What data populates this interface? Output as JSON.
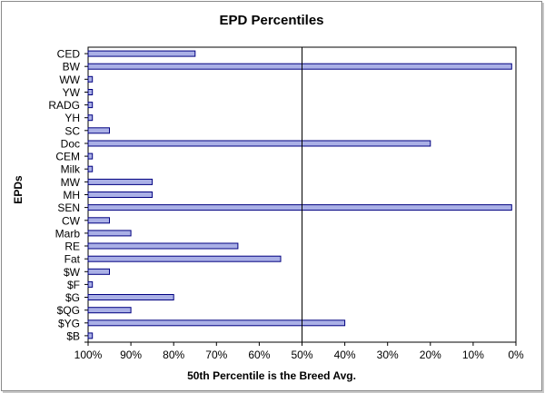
{
  "chart_data": {
    "type": "bar",
    "orientation": "horizontal",
    "title": "EPD Percentiles",
    "xlabel": "50th Percentile is the Breed Avg.",
    "ylabel": "EPDs",
    "xlim": [
      100,
      0
    ],
    "x_reversed": true,
    "x_ticks": [
      "100%",
      "90%",
      "80%",
      "70%",
      "60%",
      "50%",
      "40%",
      "30%",
      "20%",
      "10%",
      "0%"
    ],
    "x_tick_values": [
      100,
      90,
      80,
      70,
      60,
      50,
      40,
      30,
      20,
      10,
      0
    ],
    "reference_line": 50,
    "grid": false,
    "bar_color": "#aab0e6",
    "bar_edge_color": "#000080",
    "categories": [
      "CED",
      "BW",
      "WW",
      "YW",
      "RADG",
      "YH",
      "SC",
      "Doc",
      "CEM",
      "Milk",
      "MW",
      "MH",
      "SEN",
      "CW",
      "Marb",
      "RE",
      "Fat",
      "$W",
      "$F",
      "$G",
      "$QG",
      "$YG",
      "$B"
    ],
    "values": [
      75,
      1,
      99,
      99,
      99,
      99,
      95,
      20,
      99,
      99,
      85,
      85,
      1,
      95,
      90,
      65,
      55,
      95,
      99,
      80,
      90,
      40,
      99
    ]
  }
}
